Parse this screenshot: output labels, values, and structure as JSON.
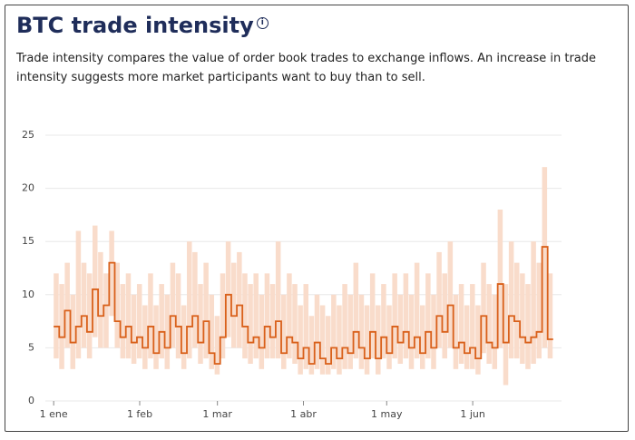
{
  "header": {
    "title": "BTC trade intensity",
    "description": "Trade intensity compares the value of order book trades to exchange inflows. An increase in trade intensity suggests more market participants want to buy than to sell."
  },
  "chart_data": {
    "type": "step",
    "x": [
      0,
      2,
      4,
      6,
      8,
      10,
      12,
      14,
      16,
      18,
      20,
      22,
      24,
      26,
      28,
      30,
      32,
      34,
      36,
      38,
      40,
      42,
      44,
      46,
      48,
      50,
      52,
      54,
      56,
      58,
      60,
      62,
      64,
      66,
      68,
      70,
      72,
      74,
      76,
      78,
      80,
      82,
      84,
      86,
      88,
      90,
      92,
      94,
      96,
      98,
      100,
      102,
      104,
      106,
      108,
      110,
      112,
      114,
      116,
      118,
      120,
      122,
      124,
      126,
      128,
      130,
      132,
      134,
      136,
      138,
      140,
      142,
      144,
      146,
      148,
      150,
      152,
      154,
      156,
      158,
      160,
      162,
      164,
      166,
      168,
      170,
      172,
      174,
      176,
      178
    ],
    "series": [
      {
        "color": "#d9601a",
        "values": [
          7,
          6,
          8.5,
          5.5,
          7,
          8,
          6.5,
          10.5,
          8,
          9,
          13,
          7.5,
          6,
          7,
          5.5,
          6,
          5,
          7,
          4.5,
          6.5,
          5,
          8,
          7,
          4.5,
          7,
          8,
          5.5,
          7.5,
          4.5,
          3.5,
          6,
          10,
          8,
          9,
          7,
          5.5,
          6,
          5,
          7,
          6,
          7.5,
          4.5,
          6,
          5.5,
          4,
          5,
          3.5,
          5.5,
          4,
          3.5,
          5,
          4,
          5,
          4.5,
          6.5,
          5,
          4,
          6.5,
          4,
          6,
          4.5,
          7,
          5.5,
          6.5,
          5,
          6,
          4.5,
          6.5,
          5,
          8,
          6.5,
          9,
          5,
          5.5,
          4.5,
          5,
          4,
          8,
          5.5,
          5,
          11,
          5.5,
          8,
          7.5,
          6,
          5.5,
          6,
          6.5,
          14.5,
          5.8
        ]
      },
      {
        "color": "#f9dccb",
        "values": [
          4,
          3,
          5,
          3,
          4,
          5,
          4,
          6,
          5,
          5,
          8,
          5,
          4,
          4,
          3.5,
          4,
          3,
          4,
          3,
          4,
          3,
          5,
          4,
          3,
          4,
          5,
          3.5,
          4,
          3,
          2.5,
          4,
          6,
          5,
          5,
          4,
          3.5,
          4,
          3,
          4,
          4,
          4,
          3,
          4,
          3.5,
          2.5,
          3,
          2.5,
          3,
          2.5,
          2.5,
          3,
          2.5,
          3,
          3,
          4,
          3,
          2.5,
          4,
          2.5,
          4,
          3,
          4,
          3.5,
          4,
          3,
          4,
          3,
          4,
          3,
          5,
          4,
          5,
          3,
          3.5,
          3,
          3,
          2.5,
          4.5,
          3.5,
          3,
          5,
          1.5,
          4,
          4,
          3.5,
          3,
          3.5,
          4,
          5,
          4
        ]
      },
      {
        "color": "#f9dccb",
        "values": [
          12,
          11,
          13,
          10,
          16,
          13,
          12,
          16.5,
          14,
          12,
          16,
          13,
          11,
          12,
          10,
          11,
          9,
          12,
          9,
          11,
          10,
          13,
          12,
          9,
          15,
          14,
          11,
          13,
          10,
          8,
          12,
          15,
          13,
          14,
          12,
          11,
          12,
          10,
          12,
          11,
          15,
          10,
          12,
          11,
          9,
          11,
          8,
          10,
          9,
          8,
          10,
          9,
          11,
          10,
          13,
          10,
          9,
          12,
          9,
          11,
          9,
          12,
          10,
          12,
          10,
          13,
          9,
          12,
          10,
          14,
          12,
          15,
          10,
          11,
          9,
          11,
          9,
          13,
          11,
          10,
          18,
          11,
          15,
          13,
          12,
          11,
          15,
          13,
          22,
          12
        ]
      }
    ],
    "xlim": [
      -3,
      183
    ],
    "xticks": [
      {
        "value": 0,
        "label": "1 ene"
      },
      {
        "value": 31,
        "label": "1 feb"
      },
      {
        "value": 59,
        "label": "1 mar"
      },
      {
        "value": 90,
        "label": "1 abr"
      },
      {
        "value": 120,
        "label": "1 may"
      },
      {
        "value": 151,
        "label": "1 jun"
      }
    ],
    "ylim": [
      0,
      25
    ],
    "yticks": [
      0,
      5,
      10,
      15,
      20,
      25
    ],
    "grid": true
  }
}
